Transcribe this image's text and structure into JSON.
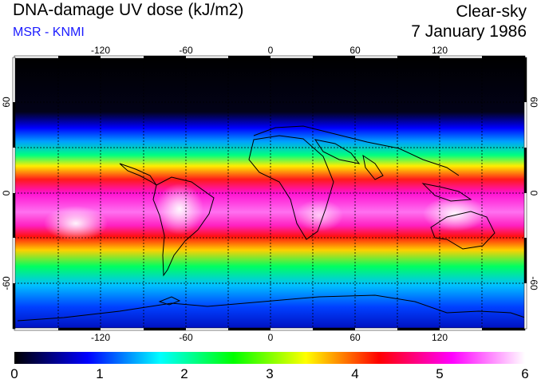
{
  "header": {
    "title": "DNA-damage UV dose (kJ/m2)",
    "subtitle": "MSR - KNMI",
    "sky_condition": "Clear-sky",
    "date": "7 January 1986"
  },
  "map": {
    "lon_ticks": [
      "-120",
      "-60",
      "0",
      "60",
      "120"
    ],
    "lat_ticks": [
      "60",
      "0",
      "-60"
    ],
    "lon_range": [
      -180,
      180
    ],
    "lat_range": [
      -90,
      90
    ]
  },
  "colorbar": {
    "labels": [
      "0",
      "1",
      "2",
      "3",
      "4",
      "5",
      "6"
    ],
    "min": 0,
    "max": 6,
    "colors": [
      "#000000",
      "#0000ff",
      "#00ffff",
      "#00ff00",
      "#ffff00",
      "#ff0000",
      "#ff00ff",
      "#ffffff"
    ]
  }
}
